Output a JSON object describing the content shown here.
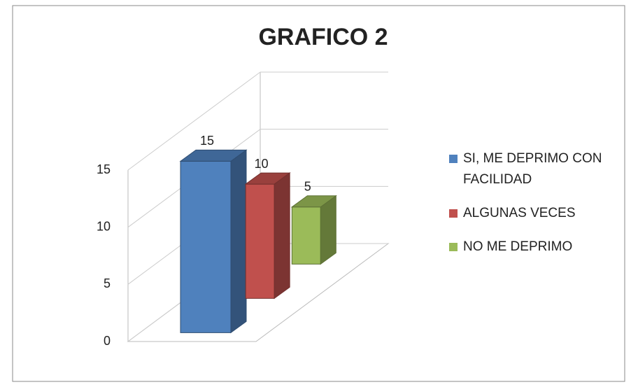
{
  "chart_data": {
    "type": "bar3d",
    "title": "GRAFICO 2",
    "series": [
      {
        "name": "SI, ME DEPRIMO CON FACILIDAD",
        "color": "#4f81bd",
        "values": [
          15
        ]
      },
      {
        "name": "ALGUNAS VECES",
        "color": "#c0504d",
        "values": [
          10
        ]
      },
      {
        "name": "NO ME DEPRIMO",
        "color": "#9bbb59",
        "values": [
          5
        ]
      }
    ],
    "ylim": [
      0,
      15
    ],
    "yticks": [
      0,
      5,
      10,
      15
    ],
    "grid": true,
    "legend": "right"
  }
}
